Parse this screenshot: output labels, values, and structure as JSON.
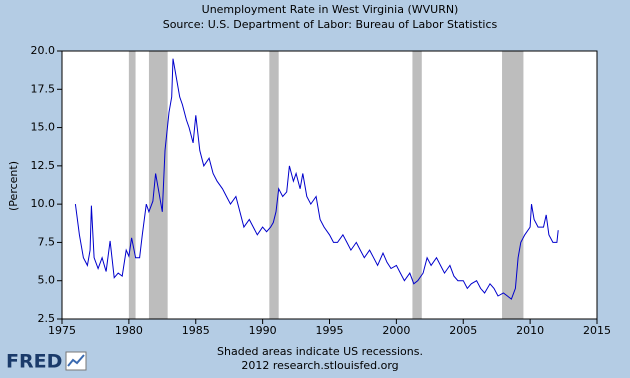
{
  "chart_data": {
    "type": "line",
    "title": "Unemployment Rate in West Virginia (WVURN)",
    "subtitle": "Source: U.S. Department of Labor: Bureau of Labor Statistics",
    "y_label": "(Percent)",
    "note": "Shaded areas indicate US recessions.",
    "credit": "2012 research.stlouisfed.org",
    "logo": "FRED",
    "recessions": [
      [
        1980.0,
        1980.5
      ],
      [
        1981.5,
        1982.9
      ],
      [
        1990.5,
        1991.2
      ],
      [
        2001.2,
        2001.9
      ],
      [
        2007.9,
        2009.5
      ]
    ],
    "xlim": [
      1975,
      2015
    ],
    "xticks": [
      1975,
      1980,
      1985,
      1990,
      1995,
      2000,
      2005,
      2010,
      2015
    ],
    "ylim": [
      2.5,
      20.0
    ],
    "yticks": [
      2.5,
      {
        "value": 5,
        "label": "5.0"
      },
      7.5,
      {
        "value": 10,
        "label": "10.0"
      },
      12.5,
      {
        "value": 15,
        "label": "15.0"
      },
      17.5,
      {
        "value": 20,
        "label": "20.0"
      }
    ],
    "series": [
      {
        "color": "#0000cc",
        "x": [
          1976.0,
          1976.3,
          1976.6,
          1976.9,
          1977.1,
          1977.2,
          1977.4,
          1977.7,
          1978.0,
          1978.3,
          1978.6,
          1978.9,
          1979.2,
          1979.5,
          1979.8,
          1980.0,
          1980.2,
          1980.5,
          1980.8,
          1981.0,
          1981.3,
          1981.5,
          1981.8,
          1982.0,
          1982.2,
          1982.5,
          1982.7,
          1983.0,
          1983.2,
          1983.3,
          1983.5,
          1983.8,
          1984.0,
          1984.3,
          1984.5,
          1984.8,
          1985.0,
          1985.3,
          1985.6,
          1986.0,
          1986.3,
          1986.6,
          1987.0,
          1987.3,
          1987.6,
          1988.0,
          1988.3,
          1988.6,
          1989.0,
          1989.3,
          1989.6,
          1990.0,
          1990.3,
          1990.6,
          1990.8,
          1991.0,
          1991.2,
          1991.5,
          1991.8,
          1992.0,
          1992.3,
          1992.5,
          1992.8,
          1993.0,
          1993.3,
          1993.6,
          1994.0,
          1994.3,
          1994.6,
          1995.0,
          1995.3,
          1995.6,
          1996.0,
          1996.3,
          1996.6,
          1997.0,
          1997.3,
          1997.6,
          1998.0,
          1998.3,
          1998.6,
          1999.0,
          1999.3,
          1999.6,
          2000.0,
          2000.3,
          2000.6,
          2001.0,
          2001.3,
          2001.6,
          2002.0,
          2002.3,
          2002.6,
          2003.0,
          2003.3,
          2003.6,
          2004.0,
          2004.3,
          2004.6,
          2005.0,
          2005.3,
          2005.6,
          2006.0,
          2006.3,
          2006.6,
          2007.0,
          2007.3,
          2007.6,
          2008.0,
          2008.3,
          2008.6,
          2008.9,
          2009.1,
          2009.3,
          2009.6,
          2010.0,
          2010.1,
          2010.3,
          2010.6,
          2011.0,
          2011.2,
          2011.4,
          2011.7,
          2012.0,
          2012.1
        ],
        "values": [
          10.0,
          8.0,
          6.5,
          6.0,
          7.0,
          9.9,
          6.5,
          5.8,
          6.5,
          5.6,
          7.6,
          5.2,
          5.5,
          5.3,
          7.0,
          6.6,
          7.8,
          6.5,
          6.5,
          8.0,
          10.0,
          9.5,
          10.2,
          12.0,
          11.0,
          9.5,
          13.5,
          16.0,
          17.0,
          19.5,
          18.5,
          17.0,
          16.5,
          15.5,
          15.0,
          14.0,
          15.8,
          13.5,
          12.5,
          13.0,
          12.0,
          11.5,
          11.0,
          10.5,
          10.0,
          10.5,
          9.5,
          8.5,
          9.0,
          8.5,
          8.0,
          8.5,
          8.2,
          8.5,
          8.8,
          9.5,
          11.0,
          10.5,
          10.8,
          12.5,
          11.5,
          12.0,
          11.0,
          12.0,
          10.5,
          10.0,
          10.5,
          9.0,
          8.5,
          8.0,
          7.5,
          7.5,
          8.0,
          7.5,
          7.0,
          7.5,
          7.0,
          6.5,
          7.0,
          6.5,
          6.0,
          6.8,
          6.2,
          5.8,
          6.0,
          5.5,
          5.0,
          5.5,
          4.8,
          5.0,
          5.5,
          6.5,
          6.0,
          6.5,
          6.0,
          5.5,
          6.0,
          5.3,
          5.0,
          5.0,
          4.5,
          4.8,
          5.0,
          4.5,
          4.2,
          4.8,
          4.5,
          4.0,
          4.2,
          4.0,
          3.8,
          4.5,
          6.5,
          7.5,
          8.0,
          8.5,
          10.0,
          9.0,
          8.5,
          8.5,
          9.3,
          8.0,
          7.5,
          7.5,
          8.3
        ]
      }
    ]
  }
}
